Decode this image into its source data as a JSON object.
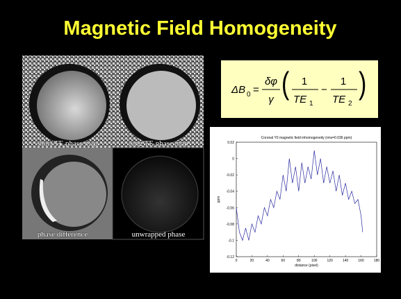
{
  "slide": {
    "title": "Magnetic Field Homogeneity",
    "panels": [
      "short TE phase map",
      "long TE phase map",
      "phase difference",
      "unwrapped phase"
    ],
    "formula": {
      "lhs": "ΔB",
      "lhs_sub": "0",
      "eq": "=",
      "num": "δφ",
      "den": "γ",
      "frac1_num": "1",
      "frac1_den": "TE",
      "frac1_sub": "1",
      "minus": "−",
      "frac2_num": "1",
      "frac2_den": "TE",
      "frac2_sub": "2"
    }
  },
  "chart_data": {
    "type": "line",
    "title": "Coronal Y0 magnetic field inhomogeneity (rms=0.036 ppm)",
    "x_label": "distance (pixel)",
    "y_label": "ppm",
    "xlim": [
      0,
      180
    ],
    "xticks": [
      0,
      20,
      40,
      60,
      80,
      100,
      120,
      140,
      160,
      180
    ],
    "ylim": [
      -0.12,
      0.02
    ],
    "yticks": [
      0.02,
      0,
      -0.02,
      -0.04,
      -0.06,
      -0.08,
      -0.1,
      -0.12
    ],
    "series": [
      {
        "color": "#2a2aa0",
        "x": [
          0,
          4,
          8,
          12,
          16,
          20,
          24,
          28,
          32,
          36,
          40,
          44,
          48,
          52,
          56,
          60,
          64,
          68,
          72,
          76,
          80,
          84,
          88,
          92,
          96,
          100,
          104,
          108,
          112,
          116,
          120,
          124,
          128,
          132,
          136,
          140,
          144,
          148,
          152,
          156,
          160,
          162
        ],
        "values": [
          -0.06,
          -0.09,
          -0.1,
          -0.085,
          -0.1,
          -0.08,
          -0.09,
          -0.07,
          -0.08,
          -0.06,
          -0.07,
          -0.05,
          -0.06,
          -0.04,
          -0.05,
          -0.02,
          -0.04,
          0,
          -0.03,
          -0.01,
          -0.04,
          -0.005,
          -0.03,
          -0.01,
          -0.025,
          0.01,
          -0.02,
          0,
          -0.03,
          -0.01,
          -0.03,
          -0.015,
          -0.04,
          -0.02,
          -0.045,
          -0.03,
          -0.05,
          -0.04,
          -0.055,
          -0.05,
          -0.07,
          -0.09
        ]
      }
    ]
  }
}
